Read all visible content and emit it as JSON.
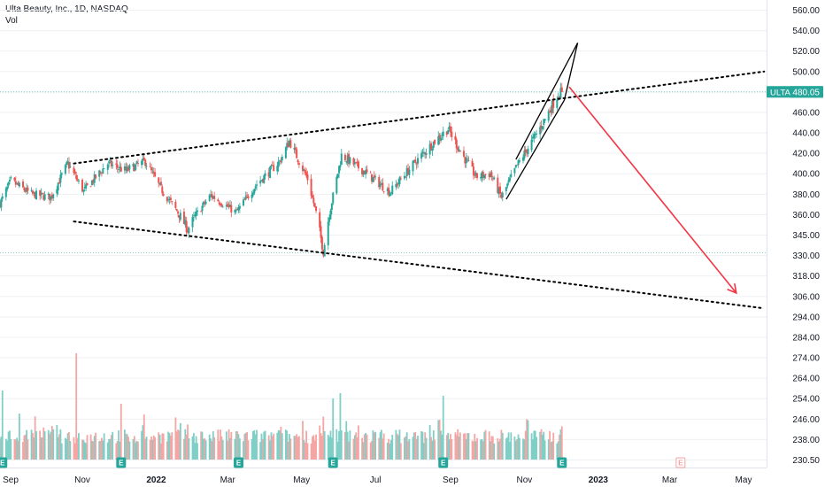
{
  "header": {
    "symbol_line": "Ulta Beauty, Inc., 1D, NASDAQ",
    "volume_label": "Vol"
  },
  "price_tag": {
    "ticker": "ULTA",
    "price": "480.05"
  },
  "colors": {
    "up": "#26a69a",
    "down": "#ef5350",
    "up_vol": "#7fcfc6",
    "down_vol": "#f5a6a4",
    "trendline": "#000000",
    "target_arrow": "#f23645",
    "grid": "#eef0f3",
    "axis_text": "#131722",
    "price_tag_bg": "#26a69a",
    "price_level_line": "#26a69a",
    "earnings_marker": "#26a69a"
  },
  "chart_data": {
    "type": "candlestick",
    "title": "Ulta Beauty, Inc., 1D, NASDAQ",
    "y_scale": "log",
    "y_ticks": [
      "560.00",
      "540.00",
      "520.00",
      "500.00",
      "480.00",
      "460.00",
      "440.00",
      "420.00",
      "400.00",
      "380.00",
      "360.00",
      "345.00",
      "330.00",
      "318.00",
      "306.00",
      "294.00",
      "284.00",
      "274.00",
      "264.00",
      "254.00",
      "246.00",
      "238.00",
      "230.50"
    ],
    "x_ticks": [
      "Sep",
      "Nov",
      "2022",
      "Mar",
      "May",
      "Jul",
      "Sep",
      "Nov",
      "2023",
      "Mar",
      "May"
    ],
    "x_range": [
      "2021-08-25",
      "2023-05-20"
    ],
    "last_price": 480.05,
    "price_anchors": [
      {
        "date": "2021-08-25",
        "close": 371
      },
      {
        "date": "2021-09-03",
        "close": 393
      },
      {
        "date": "2021-09-20",
        "close": 380
      },
      {
        "date": "2021-10-06",
        "close": 377
      },
      {
        "date": "2021-10-20",
        "close": 410
      },
      {
        "date": "2021-11-02",
        "close": 383
      },
      {
        "date": "2021-11-22",
        "close": 410
      },
      {
        "date": "2021-12-07",
        "close": 403
      },
      {
        "date": "2021-12-23",
        "close": 412
      },
      {
        "date": "2022-01-05",
        "close": 385
      },
      {
        "date": "2022-01-27",
        "close": 349
      },
      {
        "date": "2022-02-15",
        "close": 379
      },
      {
        "date": "2022-03-08",
        "close": 362
      },
      {
        "date": "2022-03-25",
        "close": 390
      },
      {
        "date": "2022-04-13",
        "close": 412
      },
      {
        "date": "2022-04-21",
        "close": 432
      },
      {
        "date": "2022-05-06",
        "close": 395
      },
      {
        "date": "2022-05-19",
        "close": 333
      },
      {
        "date": "2022-06-03",
        "close": 418
      },
      {
        "date": "2022-06-22",
        "close": 402
      },
      {
        "date": "2022-07-13",
        "close": 382
      },
      {
        "date": "2022-08-02",
        "close": 410
      },
      {
        "date": "2022-08-19",
        "close": 432
      },
      {
        "date": "2022-08-30",
        "close": 444
      },
      {
        "date": "2022-09-10",
        "close": 420
      },
      {
        "date": "2022-09-22",
        "close": 397
      },
      {
        "date": "2022-10-04",
        "close": 400
      },
      {
        "date": "2022-10-13",
        "close": 377
      },
      {
        "date": "2022-10-26",
        "close": 408
      },
      {
        "date": "2022-11-14",
        "close": 445
      },
      {
        "date": "2022-11-29",
        "close": 478
      },
      {
        "date": "2022-12-02",
        "close": 480.05
      }
    ],
    "earnings_dates": [
      "2021-08-27",
      "2021-12-03",
      "2022-03-10",
      "2022-05-27",
      "2022-08-26",
      "2022-12-02",
      "2023-03-10"
    ],
    "earnings_marker_label": "E",
    "volume_spikes": [
      {
        "date": "2021-08-27",
        "value": 5.2
      },
      {
        "date": "2021-10-27",
        "value": 8.0
      },
      {
        "date": "2021-12-03",
        "value": 4.2
      },
      {
        "date": "2022-05-27",
        "value": 4.6
      },
      {
        "date": "2022-06-02",
        "value": 5.0
      },
      {
        "date": "2022-08-26",
        "value": 4.8
      },
      {
        "date": "2022-12-02",
        "value": 2.5
      }
    ],
    "annotations": {
      "upper_trendline": [
        {
          "date": "2021-10-25",
          "price": 410
        },
        {
          "date": "2023-05-18",
          "price": 500
        }
      ],
      "lower_trendline": [
        {
          "date": "2021-10-25",
          "price": 355
        },
        {
          "date": "2023-05-18",
          "price": 299
        }
      ],
      "wedge_upper": [
        {
          "date": "2022-10-25",
          "price": 414
        },
        {
          "date": "2022-12-15",
          "price": 528
        }
      ],
      "wedge_lower": [
        {
          "date": "2022-10-17",
          "price": 375
        },
        {
          "date": "2022-12-04",
          "price": 472
        }
      ],
      "target_arrow": [
        {
          "date": "2022-12-08",
          "price": 485
        },
        {
          "date": "2023-04-25",
          "price": 308
        }
      ],
      "horizontal_levels": [
        480.05,
        332
      ]
    }
  }
}
